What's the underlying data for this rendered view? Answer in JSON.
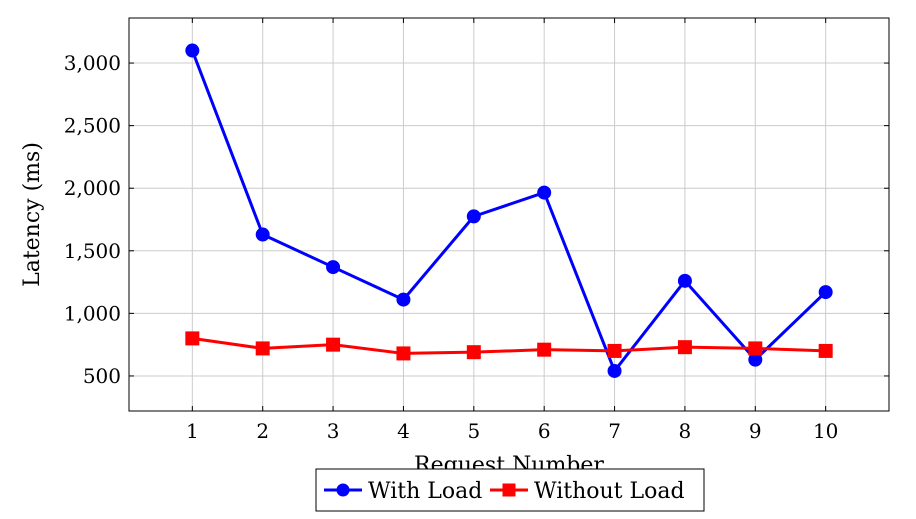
{
  "chart_data": {
    "type": "line",
    "title": "",
    "xlabel": "Request Number",
    "ylabel": "Latency (ms)",
    "x": [
      1,
      2,
      3,
      4,
      5,
      6,
      7,
      8,
      9,
      10
    ],
    "xlim": [
      0.1,
      10.9
    ],
    "ylim": [
      220,
      3360
    ],
    "xticks": [
      1,
      2,
      3,
      4,
      5,
      6,
      7,
      8,
      9,
      10
    ],
    "yticks": [
      500,
      1000,
      1500,
      2000,
      2500,
      3000
    ],
    "ytick_labels": [
      "500",
      "1,000",
      "1,500",
      "2,000",
      "2,500",
      "3,000"
    ],
    "grid": true,
    "legend_position": "bottom-center",
    "series": [
      {
        "name": "With Load",
        "color": "#0000ff",
        "marker": "circle",
        "values": [
          3100,
          1630,
          1370,
          1110,
          1775,
          1965,
          540,
          1260,
          630,
          1170
        ]
      },
      {
        "name": "Without Load",
        "color": "#ff0000",
        "marker": "square",
        "values": [
          800,
          720,
          750,
          680,
          690,
          710,
          700,
          730,
          720,
          700
        ]
      }
    ]
  }
}
